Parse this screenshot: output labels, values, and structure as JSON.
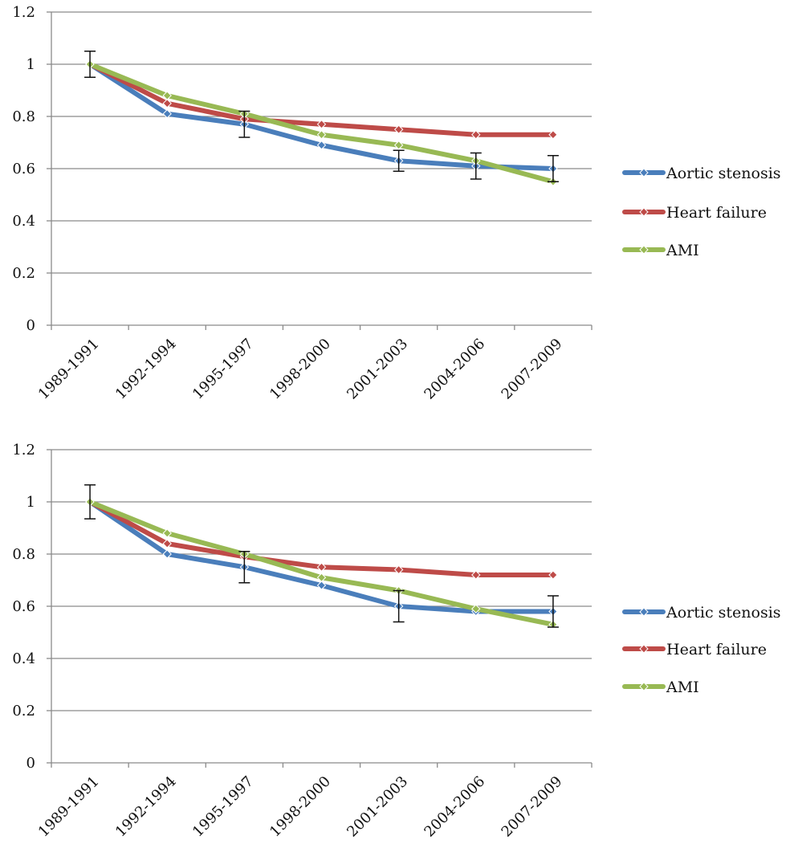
{
  "charts": [
    {
      "type": "line",
      "categories": [
        "1989-1991",
        "1992-1994",
        "1995-1997",
        "1998-2000",
        "2001-2003",
        "2004-2006",
        "2007-2009"
      ],
      "ylim": [
        0,
        1.2
      ],
      "yticks": [
        "0",
        "0.2",
        "0.4",
        "0.6",
        "0.8",
        "1",
        "1.2"
      ],
      "ytick_values": [
        0,
        0.2,
        0.4,
        0.6,
        0.8,
        1.0,
        1.2
      ],
      "grid": "horizontal",
      "legend_position": "right",
      "series": [
        {
          "name": "Aortic stenosis",
          "color": "#4a7ebb",
          "values": [
            1.0,
            0.81,
            0.77,
            0.69,
            0.63,
            0.61,
            0.6
          ],
          "error_bars": [
            0.05,
            null,
            0.05,
            null,
            0.04,
            0.05,
            0.05
          ]
        },
        {
          "name": "Heart failure",
          "color": "#be4b48",
          "values": [
            1.0,
            0.85,
            0.79,
            0.77,
            0.75,
            0.73,
            0.73
          ]
        },
        {
          "name": "AMI",
          "color": "#98b954",
          "values": [
            1.0,
            0.88,
            0.81,
            0.73,
            0.69,
            0.63,
            0.55
          ]
        }
      ]
    },
    {
      "type": "line",
      "categories": [
        "1989-1991",
        "1992-1994",
        "1995-1997",
        "1998-2000",
        "2001-2003",
        "2004-2006",
        "2007-2009"
      ],
      "ylim": [
        0,
        1.2
      ],
      "yticks": [
        "0",
        "0.2",
        "0.4",
        "0.6",
        "0.8",
        "1",
        "1.2"
      ],
      "ytick_values": [
        0,
        0.2,
        0.4,
        0.6,
        0.8,
        1.0,
        1.2
      ],
      "grid": "horizontal",
      "legend_position": "right",
      "series": [
        {
          "name": "Aortic stenosis",
          "color": "#4a7ebb",
          "values": [
            1.0,
            0.8,
            0.75,
            0.68,
            0.6,
            0.58,
            0.58
          ],
          "error_bars": [
            0.065,
            null,
            0.06,
            null,
            0.06,
            null,
            0.06
          ]
        },
        {
          "name": "Heart failure",
          "color": "#be4b48",
          "values": [
            1.0,
            0.84,
            0.79,
            0.75,
            0.74,
            0.72,
            0.72
          ]
        },
        {
          "name": "AMI",
          "color": "#98b954",
          "values": [
            1.0,
            0.88,
            0.8,
            0.71,
            0.66,
            0.59,
            0.53
          ]
        }
      ]
    }
  ]
}
